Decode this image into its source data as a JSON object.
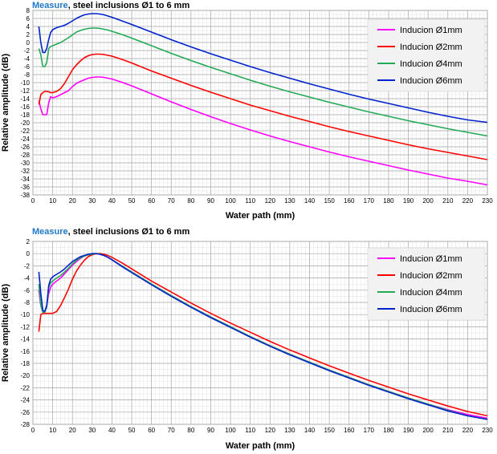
{
  "chart_data": [
    {
      "type": "line",
      "title_accent": "Measure",
      "title_rest": ", steel inclusions Ø1 to 6 mm",
      "xlabel": "Water path (mm)",
      "ylabel": "Relative amplitude (dB)",
      "xlim": [
        0,
        230
      ],
      "ylim": [
        -38,
        8
      ],
      "xtick_step": 10,
      "ytick_step": 2,
      "grid": true,
      "legend_position": "top-right",
      "series": [
        {
          "name": "Inducion Ø1mm",
          "color": "#ff00ff",
          "x": [
            3,
            4,
            5,
            6,
            7,
            8,
            9,
            10,
            12,
            14,
            16,
            18,
            20,
            22,
            24,
            26,
            28,
            30,
            32,
            34,
            36,
            38,
            40,
            45,
            50,
            60,
            70,
            80,
            90,
            100,
            110,
            120,
            130,
            140,
            150,
            160,
            170,
            180,
            190,
            200,
            210,
            220,
            230
          ],
          "y": [
            -14.5,
            -16.5,
            -18,
            -18,
            -18,
            -15,
            -13.5,
            -13.8,
            -13.5,
            -13,
            -12.5,
            -12,
            -11,
            -10.2,
            -9.7,
            -9.3,
            -8.9,
            -8.7,
            -8.6,
            -8.6,
            -8.7,
            -8.9,
            -9.1,
            -9.9,
            -10.8,
            -12.8,
            -14.8,
            -16.7,
            -18.5,
            -20.2,
            -21.8,
            -23.3,
            -24.7,
            -26,
            -27.3,
            -28.5,
            -29.6,
            -30.7,
            -31.8,
            -32.8,
            -33.8,
            -34.6,
            -35.5
          ]
        },
        {
          "name": "Inducion Ø2mm",
          "color": "#ff0000",
          "x": [
            3,
            4,
            5,
            6,
            7,
            8,
            9,
            10,
            12,
            14,
            16,
            18,
            20,
            22,
            24,
            26,
            28,
            30,
            32,
            34,
            36,
            38,
            40,
            45,
            50,
            60,
            70,
            80,
            90,
            100,
            110,
            120,
            130,
            140,
            150,
            160,
            170,
            180,
            190,
            200,
            210,
            220,
            230
          ],
          "y": [
            -15.5,
            -13,
            -12.5,
            -12.2,
            -12.2,
            -12.3,
            -12.5,
            -12.5,
            -12.2,
            -11.5,
            -10.2,
            -8.5,
            -6.8,
            -5.6,
            -4.6,
            -3.8,
            -3.3,
            -3,
            -2.9,
            -2.9,
            -3,
            -3.2,
            -3.4,
            -4.2,
            -5.1,
            -7.1,
            -8.9,
            -10.7,
            -12.4,
            -14,
            -15.6,
            -17,
            -18.4,
            -19.7,
            -21,
            -22.2,
            -23.3,
            -24.4,
            -25.5,
            -26.5,
            -27.4,
            -28.3,
            -29.2
          ]
        },
        {
          "name": "Inducion Ø4mm",
          "color": "#22aa55",
          "x": [
            3,
            4,
            5,
            6,
            7,
            8,
            9,
            10,
            12,
            14,
            16,
            18,
            20,
            22,
            24,
            26,
            28,
            30,
            32,
            34,
            36,
            38,
            40,
            45,
            50,
            60,
            70,
            80,
            90,
            100,
            110,
            120,
            130,
            140,
            150,
            160,
            170,
            180,
            190,
            200,
            210,
            220,
            230
          ],
          "y": [
            -1.5,
            -3,
            -6,
            -6,
            -5,
            -1.5,
            -1,
            -0.8,
            -0.4,
            0,
            0.6,
            1.2,
            1.9,
            2.6,
            3,
            3.3,
            3.5,
            3.6,
            3.6,
            3.5,
            3.3,
            3.1,
            2.8,
            2,
            1.1,
            -0.8,
            -2.7,
            -4.5,
            -6.2,
            -7.8,
            -9.4,
            -10.9,
            -12.3,
            -13.6,
            -14.9,
            -16.1,
            -17.3,
            -18.4,
            -19.5,
            -20.5,
            -21.5,
            -22.4,
            -23.3
          ]
        },
        {
          "name": "Inducion Ø6mm",
          "color": "#0022cc",
          "x": [
            3,
            4,
            5,
            6,
            7,
            8,
            9,
            10,
            12,
            14,
            16,
            18,
            20,
            22,
            24,
            26,
            28,
            30,
            32,
            34,
            36,
            38,
            40,
            45,
            50,
            60,
            70,
            80,
            90,
            100,
            110,
            120,
            130,
            140,
            150,
            160,
            170,
            180,
            190,
            200,
            210,
            220,
            230
          ],
          "y": [
            4,
            0,
            -2.5,
            -2.5,
            -1.5,
            0.8,
            2.5,
            3.2,
            3.7,
            4,
            4.3,
            4.8,
            5.4,
            6,
            6.5,
            6.9,
            7.1,
            7.2,
            7.2,
            7.1,
            6.9,
            6.6,
            6.3,
            5.4,
            4.5,
            2.6,
            0.7,
            -1.1,
            -2.8,
            -4.4,
            -6,
            -7.5,
            -8.9,
            -10.3,
            -11.6,
            -12.9,
            -14.1,
            -15.2,
            -16.3,
            -17.4,
            -18.4,
            -19.3,
            -19.9
          ]
        }
      ]
    },
    {
      "type": "line",
      "title_accent": "Measure",
      "title_rest": ", steel inclusions Ø1 to 6 mm",
      "xlabel": "Water path (mm)",
      "ylabel": "Relative amplitude (dB)",
      "xlim": [
        0,
        230
      ],
      "ylim": [
        -28,
        2
      ],
      "xtick_step": 10,
      "ytick_step": 2,
      "grid": true,
      "legend_position": "top-right",
      "series": [
        {
          "name": "Inducion Ø1mm",
          "color": "#ff00ff",
          "x": [
            3,
            4,
            5,
            6,
            7,
            8,
            9,
            10,
            12,
            14,
            16,
            18,
            20,
            22,
            24,
            26,
            28,
            30,
            32,
            34,
            36,
            38,
            40,
            45,
            50,
            60,
            70,
            80,
            90,
            100,
            110,
            120,
            130,
            140,
            150,
            160,
            170,
            180,
            190,
            200,
            210,
            220,
            230
          ],
          "y": [
            -6,
            -8.5,
            -9.5,
            -9.5,
            -8.5,
            -6.5,
            -5.5,
            -5,
            -4.5,
            -4,
            -3.3,
            -2.6,
            -1.9,
            -1.3,
            -0.8,
            -0.4,
            -0.2,
            -0.1,
            0,
            -0.1,
            -0.3,
            -0.6,
            -1,
            -2,
            -3,
            -5,
            -6.9,
            -8.7,
            -10.4,
            -12,
            -13.6,
            -15.1,
            -16.5,
            -17.8,
            -19.1,
            -20.3,
            -21.5,
            -22.6,
            -23.7,
            -24.7,
            -25.6,
            -26.4,
            -27
          ]
        },
        {
          "name": "Inducion Ø2mm",
          "color": "#ff0000",
          "x": [
            3,
            4,
            5,
            6,
            7,
            8,
            9,
            10,
            12,
            14,
            16,
            18,
            20,
            22,
            24,
            26,
            28,
            30,
            32,
            34,
            36,
            38,
            40,
            45,
            50,
            60,
            70,
            80,
            90,
            100,
            110,
            120,
            130,
            140,
            150,
            160,
            170,
            180,
            190,
            200,
            210,
            220,
            230
          ],
          "y": [
            -12.8,
            -10,
            -9.8,
            -9.8,
            -9.8,
            -9.8,
            -9.8,
            -9.8,
            -9.5,
            -8.5,
            -7.2,
            -5.8,
            -4.2,
            -2.9,
            -1.9,
            -1.1,
            -0.5,
            -0.2,
            0,
            0,
            -0.1,
            -0.3,
            -0.6,
            -1.5,
            -2.5,
            -4.5,
            -6.3,
            -8.1,
            -9.8,
            -11.4,
            -12.9,
            -14.4,
            -15.8,
            -17.1,
            -18.4,
            -19.6,
            -20.8,
            -21.9,
            -23,
            -24,
            -25,
            -25.9,
            -26.6
          ]
        },
        {
          "name": "Inducion Ø4mm",
          "color": "#22aa55",
          "x": [
            3,
            4,
            5,
            6,
            7,
            8,
            9,
            10,
            12,
            14,
            16,
            18,
            20,
            22,
            24,
            26,
            28,
            30,
            32,
            34,
            36,
            38,
            40,
            45,
            50,
            60,
            70,
            80,
            90,
            100,
            110,
            120,
            130,
            140,
            150,
            160,
            170,
            180,
            190,
            200,
            210,
            220,
            230
          ],
          "y": [
            -5,
            -8.5,
            -9.6,
            -9.6,
            -8.8,
            -5.5,
            -4.8,
            -4.5,
            -4,
            -3.6,
            -3,
            -2.4,
            -1.7,
            -1.1,
            -0.7,
            -0.4,
            -0.2,
            -0.1,
            0,
            -0.1,
            -0.3,
            -0.6,
            -1,
            -2,
            -3,
            -5,
            -6.9,
            -8.7,
            -10.4,
            -12,
            -13.6,
            -15.1,
            -16.5,
            -17.8,
            -19.1,
            -20.3,
            -21.5,
            -22.6,
            -23.7,
            -24.7,
            -25.7,
            -26.6,
            -27.2
          ]
        },
        {
          "name": "Inducion Ø6mm",
          "color": "#0022cc",
          "x": [
            3,
            4,
            5,
            6,
            7,
            8,
            9,
            10,
            12,
            14,
            16,
            18,
            20,
            22,
            24,
            26,
            28,
            30,
            32,
            34,
            36,
            38,
            40,
            45,
            50,
            60,
            70,
            80,
            90,
            100,
            110,
            120,
            130,
            140,
            150,
            160,
            170,
            180,
            190,
            200,
            210,
            220,
            230
          ],
          "y": [
            -3,
            -6.5,
            -9.3,
            -9.5,
            -8.5,
            -5.2,
            -4.2,
            -3.8,
            -3.4,
            -3,
            -2.5,
            -1.9,
            -1.3,
            -0.9,
            -0.5,
            -0.3,
            -0.1,
            0,
            0,
            -0.1,
            -0.3,
            -0.6,
            -1,
            -2.1,
            -3.1,
            -5.1,
            -7,
            -8.8,
            -10.5,
            -12.1,
            -13.7,
            -15.2,
            -16.6,
            -17.9,
            -19.2,
            -20.4,
            -21.6,
            -22.7,
            -23.8,
            -24.8,
            -25.8,
            -26.6,
            -27.2
          ]
        }
      ]
    }
  ]
}
